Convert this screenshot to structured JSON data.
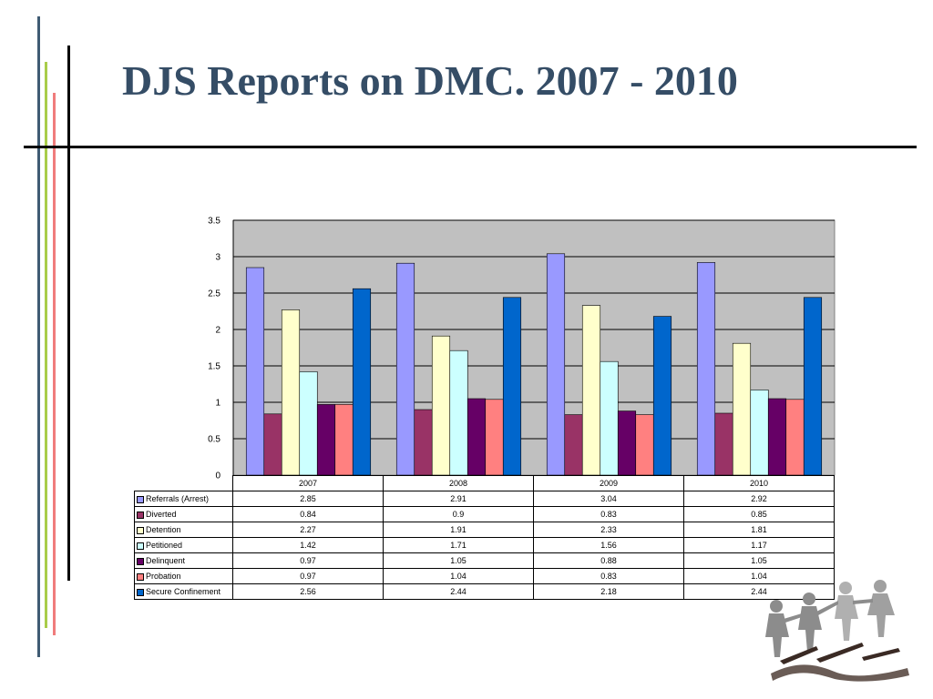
{
  "slide": {
    "title": "DJS Reports on DMC. 2007 - 2010"
  },
  "colors": {
    "title": "#354D66",
    "plot_background": "#C0C0C0",
    "line_blue": "#3F5B73",
    "line_green": "#A9CC4A",
    "line_red": "#F07C7C",
    "line_black": "#000000"
  },
  "decoration": {
    "clipart": "paper-chain-people"
  },
  "chart_data": {
    "type": "bar",
    "title": "",
    "xlabel": "",
    "ylabel": "",
    "ylim": [
      0,
      3.5
    ],
    "yticks": [
      "0",
      "0.5",
      "1",
      "1.5",
      "2",
      "2.5",
      "3",
      "3.5"
    ],
    "grid": true,
    "legend": "table-below",
    "categories": [
      "2007",
      "2008",
      "2009",
      "2010"
    ],
    "series": [
      {
        "name": "Referrals (Arrest)",
        "color": "#9999FF",
        "values": [
          2.85,
          2.91,
          3.04,
          2.92
        ],
        "labels": [
          "2.85",
          "2.91",
          "3.04",
          "2.92"
        ]
      },
      {
        "name": "Diverted",
        "color": "#993366",
        "values": [
          0.84,
          0.9,
          0.83,
          0.85
        ],
        "labels": [
          "0.84",
          "0.9",
          "0.83",
          "0.85"
        ]
      },
      {
        "name": "Detention",
        "color": "#FFFFCC",
        "values": [
          2.27,
          1.91,
          2.33,
          1.81
        ],
        "labels": [
          "2.27",
          "1.91",
          "2.33",
          "1.81"
        ]
      },
      {
        "name": "Petitioned",
        "color": "#CCFFFF",
        "values": [
          1.42,
          1.71,
          1.56,
          1.17
        ],
        "labels": [
          "1.42",
          "1.71",
          "1.56",
          "1.17"
        ]
      },
      {
        "name": "Delinquent",
        "color": "#660066",
        "values": [
          0.97,
          1.05,
          0.88,
          1.05
        ],
        "labels": [
          "0.97",
          "1.05",
          "0.88",
          "1.05"
        ]
      },
      {
        "name": "Probation",
        "color": "#FF8080",
        "values": [
          0.97,
          1.04,
          0.83,
          1.04
        ],
        "labels": [
          "0.97",
          "1.04",
          "0.83",
          "1.04"
        ]
      },
      {
        "name": "Secure Confinement",
        "color": "#0066CC",
        "values": [
          2.56,
          2.44,
          2.18,
          2.44
        ],
        "labels": [
          "2.56",
          "2.44",
          "2.18",
          "2.44"
        ]
      }
    ]
  }
}
